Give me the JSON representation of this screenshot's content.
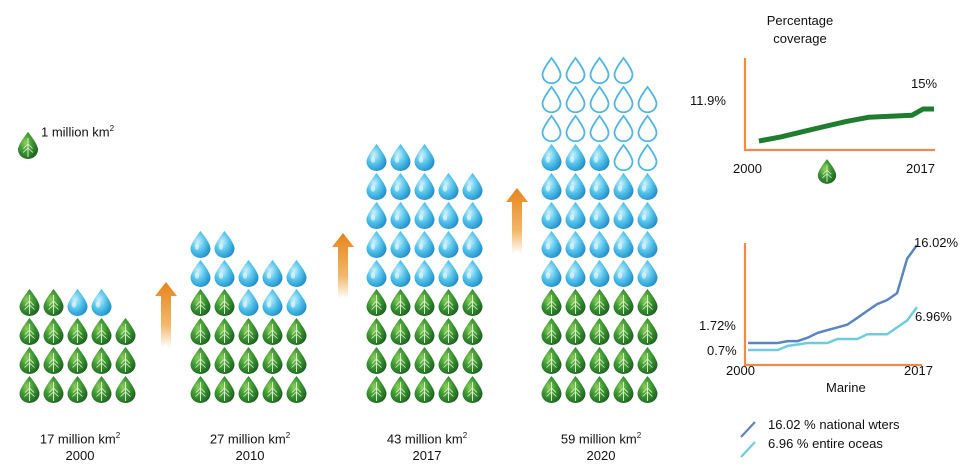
{
  "legend_drop": {
    "text": "1 million km",
    "sup": "2"
  },
  "columns": [
    {
      "area": "17 million km",
      "year": "2000",
      "green": 17,
      "blue": 2,
      "outline": 0
    },
    {
      "area": "27 million km",
      "year": "2010",
      "green": 17,
      "blue": 10,
      "outline": 0
    },
    {
      "area": "43 million km",
      "year": "2017",
      "green": 20,
      "blue": 23,
      "outline": 0
    },
    {
      "area": "59 million km",
      "year": "2020",
      "green": 20,
      "blue": 23,
      "outline": 16
    }
  ],
  "sup2": "2",
  "chart_data": [
    {
      "type": "line",
      "title": "Percentage coverage",
      "x_start_label": "2000",
      "x_end_label": "2017",
      "start_value_label": "11.9%",
      "end_value_label": "15%",
      "series": [
        {
          "color": "#1e7d2e",
          "x": [
            2001,
            2003,
            2005,
            2007,
            2009,
            2011,
            2013,
            2015,
            2016,
            2017
          ],
          "values": [
            11.9,
            12.3,
            12.8,
            13.3,
            13.8,
            14.2,
            14.3,
            14.4,
            15.0,
            15.0
          ]
        }
      ]
    },
    {
      "type": "line",
      "title": "Marine",
      "x_start_label": "2000",
      "x_end_label": "2017",
      "y_label_upper": "1.72%",
      "y_label_lower": "0.7%",
      "end_label_upper": "16.02%",
      "end_label_lower": "6.96%",
      "series": [
        {
          "name": "16.02 % national wters",
          "color": "#5b84c4",
          "x": [
            2000,
            2001,
            2002,
            2003,
            2004,
            2005,
            2006,
            2007,
            2008,
            2009,
            2010,
            2011,
            2012,
            2013,
            2014,
            2015,
            2016,
            2017
          ],
          "values": [
            1.72,
            1.72,
            1.72,
            1.72,
            2.0,
            2.0,
            2.5,
            3.2,
            3.6,
            4.0,
            4.4,
            5.4,
            6.4,
            7.4,
            8.0,
            9.0,
            14.0,
            16.02
          ]
        },
        {
          "name": "6.96 % entire oceas",
          "color": "#6ccde0",
          "x": [
            2000,
            2001,
            2002,
            2003,
            2004,
            2005,
            2006,
            2007,
            2008,
            2009,
            2010,
            2011,
            2012,
            2013,
            2014,
            2015,
            2016,
            2017
          ],
          "values": [
            0.7,
            0.7,
            0.7,
            0.7,
            1.3,
            1.5,
            1.72,
            1.72,
            1.72,
            2.3,
            2.3,
            2.3,
            3.0,
            3.0,
            3.0,
            4.0,
            5.0,
            6.96
          ]
        }
      ]
    }
  ]
}
